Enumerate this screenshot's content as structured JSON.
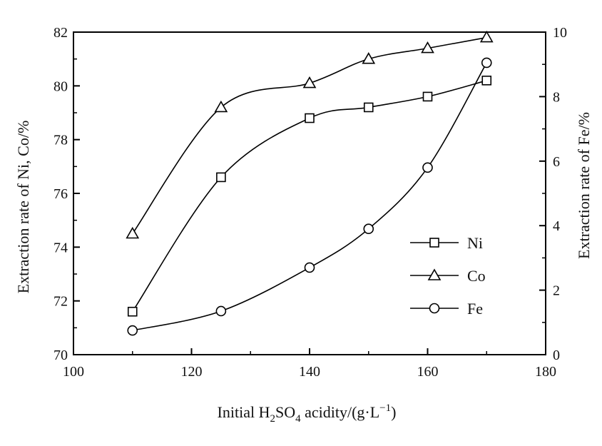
{
  "chart_data": {
    "type": "line",
    "xlabel": "Initial H2SO4 acidity/(g·L−1)",
    "xlabel_parts": {
      "prefix": "Initial H",
      "sub1": "2",
      "mid": "SO",
      "sub2": "4",
      "mid2": " acidity/(g·L",
      "sup": "−1",
      "suffix": ")"
    },
    "ylabel_left": "Extraction rate of Ni, Co/%",
    "ylabel_right": "Extraction rate of Fe/%",
    "xlim": [
      100,
      180
    ],
    "ylim_left": [
      70,
      82
    ],
    "ylim_right": [
      0,
      10
    ],
    "x_ticks": [
      "100",
      "120",
      "140",
      "160",
      "180"
    ],
    "y_left_ticks": [
      "70",
      "72",
      "74",
      "76",
      "78",
      "80",
      "82"
    ],
    "y_right_ticks": [
      "0",
      "2",
      "4",
      "6",
      "8",
      "10"
    ],
    "grid": false,
    "legend_position": "right-middle",
    "series": [
      {
        "name": "Ni",
        "axis": "left",
        "marker": "square",
        "x": [
          110,
          125,
          140,
          150,
          160,
          170
        ],
        "y": [
          71.6,
          76.6,
          78.8,
          79.2,
          79.6,
          80.2
        ]
      },
      {
        "name": "Co",
        "axis": "left",
        "marker": "triangle",
        "x": [
          110,
          125,
          140,
          150,
          160,
          170
        ],
        "y": [
          74.5,
          79.2,
          80.1,
          81.0,
          81.4,
          81.8
        ]
      },
      {
        "name": "Fe",
        "axis": "right",
        "marker": "circle",
        "x": [
          110,
          125,
          140,
          150,
          160,
          170
        ],
        "y": [
          0.75,
          1.35,
          2.7,
          3.9,
          5.8,
          9.05
        ]
      }
    ],
    "colors": {
      "line": "#000000",
      "marker_fill": "#ffffff"
    }
  }
}
